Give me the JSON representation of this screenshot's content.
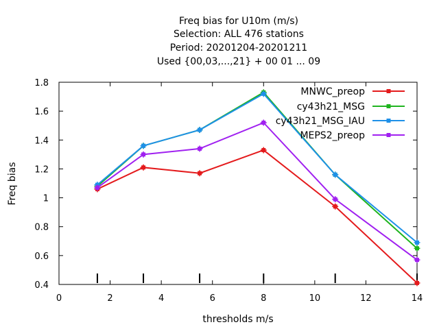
{
  "title_lines": [
    "Freq bias  for U10m (m/s)",
    "Selection: ALL    476 stations",
    "Period: 20201204-20201211",
    "Used {00,03,...,21} + 00 01 ... 09"
  ],
  "chart_data": {
    "type": "line",
    "title": "Freq bias  for U10m (m/s)",
    "xlabel": "thresholds m/s",
    "ylabel": "Freq bias",
    "xlim": [
      0,
      14
    ],
    "ylim": [
      0.4,
      1.8
    ],
    "x_ticks": [
      0,
      2,
      4,
      6,
      8,
      10,
      12,
      14
    ],
    "y_ticks": [
      0.4,
      0.6,
      0.8,
      1,
      1.2,
      1.4,
      1.6,
      1.8
    ],
    "x_tick_labels": [
      "0",
      "2",
      "4",
      "6",
      "8",
      "10",
      "12",
      "14"
    ],
    "y_tick_labels": [
      "0.4",
      "0.6",
      "0.8",
      "1",
      "1.2",
      "1.4",
      "1.6",
      "1.8"
    ],
    "threshold_markers": [
      1.5,
      3.3,
      5.5,
      8,
      10.8,
      14
    ],
    "grid": false,
    "legend_position": "top-right",
    "x": [
      1.5,
      3.3,
      5.5,
      8,
      10.8,
      14
    ],
    "series": [
      {
        "name": "MNWC_preop",
        "color": "#e41a1c",
        "values": [
          1.06,
          1.21,
          1.17,
          1.33,
          0.94,
          0.41
        ]
      },
      {
        "name": "cy43h21_MSG",
        "color": "#1fb41f",
        "values": [
          1.08,
          1.36,
          1.47,
          1.73,
          1.16,
          0.65
        ]
      },
      {
        "name": "cy43h21_MSG_IAU",
        "color": "#1e90e8",
        "values": [
          1.09,
          1.36,
          1.47,
          1.72,
          1.16,
          0.69
        ]
      },
      {
        "name": "MEPS2_preop",
        "color": "#a020f0",
        "values": [
          1.07,
          1.3,
          1.34,
          1.52,
          0.99,
          0.57
        ]
      }
    ]
  }
}
